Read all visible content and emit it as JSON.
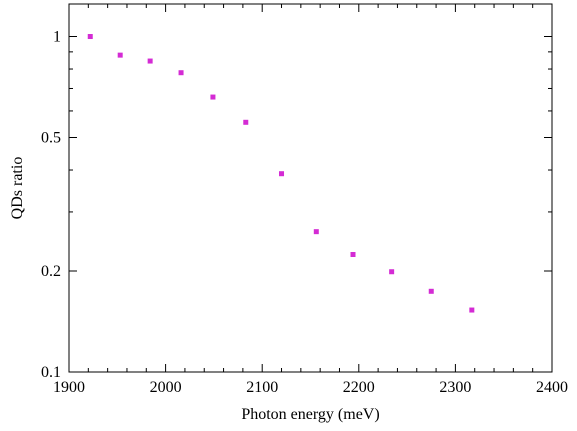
{
  "chart_data": {
    "type": "scatter",
    "title": "",
    "xlabel": "Photon energy (meV)",
    "ylabel": "QDs ratio",
    "xlim": [
      1900,
      2400
    ],
    "ylim": [
      0.1,
      1.25
    ],
    "yscale": "log",
    "grid": false,
    "legend": "none",
    "marker_color": "#d42bd4",
    "xticks": [
      1900,
      2000,
      2100,
      2200,
      2300,
      2400
    ],
    "xtick_labels": [
      "1900",
      "2000",
      "2100",
      "2200",
      "2300",
      "2400"
    ],
    "yticks": [
      0.1,
      0.2,
      0.5,
      1
    ],
    "ytick_labels": [
      "0.1",
      "0.2",
      "0.5",
      "1"
    ],
    "series": [
      {
        "x": [
          1922,
          1953,
          1984,
          2016,
          2049,
          2083,
          2120,
          2156,
          2194,
          2234,
          2275,
          2317
        ],
        "y": [
          1.0,
          0.88,
          0.845,
          0.78,
          0.66,
          0.555,
          0.39,
          0.262,
          0.224,
          0.199,
          0.174,
          0.153
        ]
      }
    ]
  }
}
